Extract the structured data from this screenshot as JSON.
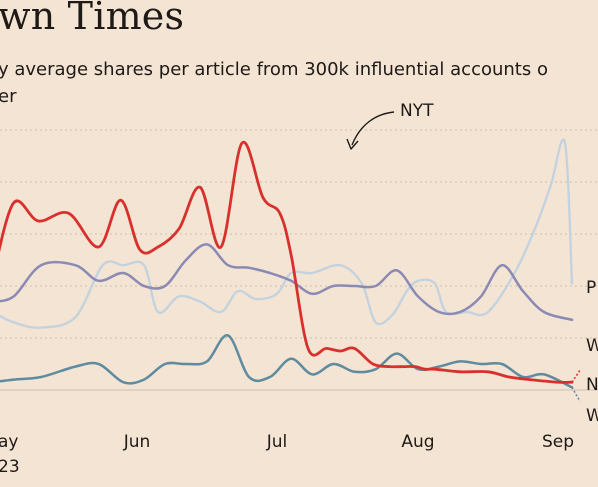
{
  "header": {
    "title": "wn Times",
    "subtitle": "y average shares per article from 300k influential accounts o⁠er"
  },
  "chart_data": {
    "type": "line",
    "title": "wn Times",
    "subtitle": "y average shares per article from 300k influential accounts o er",
    "x_axis": {
      "ticks": [
        {
          "label": "ay",
          "sub": "23",
          "x": 0
        },
        {
          "label": "Jun",
          "x": 1
        },
        {
          "label": "Jul",
          "x": 2
        },
        {
          "label": "Aug",
          "x": 3
        },
        {
          "label": "Sep",
          "x": 4
        }
      ],
      "range": [
        -0.05,
        4.3
      ]
    },
    "y_axis": {
      "range": [
        0,
        100
      ],
      "gridlines": [
        0,
        20,
        40,
        60,
        80,
        100
      ]
    },
    "annotation": {
      "text": "NYT",
      "series": "NYT"
    },
    "series": [
      {
        "name": "NYT",
        "color": "#d8312d",
        "width": 2.8,
        "end_label": "N",
        "x": [
          -0.05,
          0.1,
          0.28,
          0.5,
          0.72,
          0.88,
          1.02,
          1.15,
          1.3,
          1.45,
          1.6,
          1.75,
          1.9,
          2.02,
          2.1,
          2.22,
          2.35,
          2.45,
          2.55,
          2.68,
          2.8,
          2.9,
          2.98,
          3.05,
          3.12,
          3.3,
          3.5,
          3.65,
          3.8,
          4.0,
          4.1
        ],
        "y": [
          44,
          72,
          65,
          68,
          55,
          73,
          54,
          55,
          62,
          78,
          55,
          95,
          74,
          68,
          52,
          16,
          16,
          15,
          16,
          10,
          9,
          9,
          9,
          8,
          8,
          7,
          7,
          5,
          4,
          3,
          3
        ]
      },
      {
        "name": "P",
        "color": "#c3d2df",
        "width": 2.3,
        "end_label": "P",
        "x": [
          -0.05,
          0.1,
          0.3,
          0.55,
          0.75,
          0.9,
          1.05,
          1.15,
          1.3,
          1.45,
          1.6,
          1.72,
          1.85,
          2.0,
          2.1,
          2.25,
          2.45,
          2.6,
          2.7,
          2.82,
          2.92,
          3.0,
          3.12,
          3.2,
          3.35,
          3.5,
          3.7,
          3.85,
          3.95,
          4.05,
          4.1
        ],
        "y": [
          30,
          26,
          24,
          28,
          48,
          48,
          48,
          30,
          36,
          34,
          30,
          38,
          35,
          37,
          45,
          45,
          48,
          41,
          26,
          29,
          38,
          42,
          41,
          30,
          30,
          30,
          46,
          64,
          79,
          95,
          41
        ]
      },
      {
        "name": "W",
        "color": "#8b8ab4",
        "width": 2.5,
        "end_label": "W",
        "x": [
          -0.05,
          0.1,
          0.3,
          0.55,
          0.72,
          0.9,
          1.05,
          1.2,
          1.35,
          1.5,
          1.65,
          1.8,
          1.95,
          2.1,
          2.25,
          2.4,
          2.55,
          2.7,
          2.85,
          3.0,
          3.15,
          3.3,
          3.45,
          3.6,
          3.75,
          3.9,
          4.1
        ],
        "y": [
          34,
          36,
          48,
          48,
          42,
          45,
          40,
          40,
          50,
          56,
          48,
          47,
          45,
          42,
          37,
          40,
          40,
          40,
          46,
          36,
          30,
          30,
          36,
          48,
          38,
          30,
          27
        ]
      },
      {
        "name": "W2",
        "color": "#5e8b9f",
        "width": 2.5,
        "end_label": "W",
        "x": [
          -0.05,
          0.1,
          0.3,
          0.55,
          0.72,
          0.9,
          1.05,
          1.2,
          1.35,
          1.5,
          1.65,
          1.8,
          1.95,
          2.1,
          2.25,
          2.4,
          2.55,
          2.7,
          2.85,
          3.0,
          3.15,
          3.3,
          3.45,
          3.6,
          3.75,
          3.9,
          4.1
        ],
        "y": [
          3,
          4,
          5,
          9,
          10,
          3,
          4,
          10,
          10,
          11,
          21,
          5,
          5,
          12,
          6,
          10,
          7,
          8,
          14,
          8,
          9,
          11,
          10,
          10,
          5,
          6,
          1
        ]
      }
    ]
  }
}
